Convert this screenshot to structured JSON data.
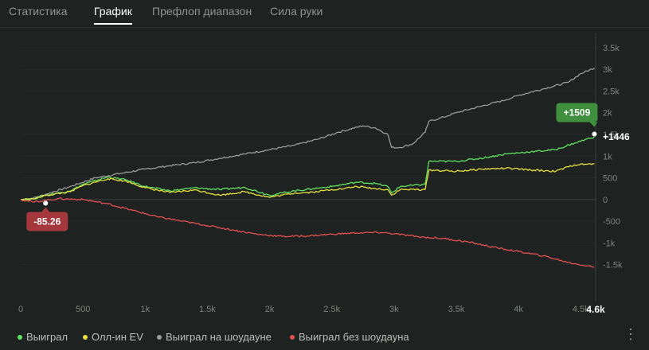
{
  "tabs": [
    {
      "label": "Статистика",
      "active": false
    },
    {
      "label": "График",
      "active": true
    },
    {
      "label": "Префлоп диапазон",
      "active": false
    },
    {
      "label": "Сила руки",
      "active": false
    }
  ],
  "legend": [
    {
      "label": "Выиграл",
      "color": "#5fe35f"
    },
    {
      "label": "Олл-ин EV",
      "color": "#e6e041"
    },
    {
      "label": "Выиграл на шоудауне",
      "color": "#9a9a9a"
    },
    {
      "label": "Выиграл без шоудауна",
      "color": "#e05050"
    }
  ],
  "more_icon": "vertical-ellipsis-icon",
  "chart_data": {
    "type": "line",
    "x_ticks": [
      {
        "v": 0,
        "label": "0"
      },
      {
        "v": 500,
        "label": "500"
      },
      {
        "v": 1000,
        "label": "1k"
      },
      {
        "v": 1500,
        "label": "1.5k"
      },
      {
        "v": 2000,
        "label": "2k"
      },
      {
        "v": 2500,
        "label": "2.5k"
      },
      {
        "v": 3000,
        "label": "3k"
      },
      {
        "v": 3500,
        "label": "3.5k"
      },
      {
        "v": 4000,
        "label": "4k"
      },
      {
        "v": 4500,
        "label": "4.5k"
      }
    ],
    "x_end_label": "4.6k",
    "xlim": [
      0,
      4620
    ],
    "y_ticks": [
      {
        "v": 3500,
        "label": "3.5k"
      },
      {
        "v": 3000,
        "label": "3k"
      },
      {
        "v": 2500,
        "label": "2.5k"
      },
      {
        "v": 2000,
        "label": "2k"
      },
      {
        "v": 1500,
        "label": "1.5k"
      },
      {
        "v": 1000,
        "label": "1k"
      },
      {
        "v": 500,
        "label": "500"
      },
      {
        "v": 0,
        "label": "0"
      },
      {
        "v": -500,
        "label": "-500"
      },
      {
        "v": -1000,
        "label": "-1k"
      },
      {
        "v": -1500,
        "label": "-1.5k"
      }
    ],
    "ylim": [
      -1800,
      3700
    ],
    "series": [
      {
        "name": "Выиграл на шоудауне",
        "color": "#9a9a9a",
        "x": [
          0,
          100,
          200,
          400,
          600,
          800,
          1000,
          1200,
          1400,
          1600,
          1800,
          2000,
          2200,
          2400,
          2550,
          2750,
          2850,
          2950,
          2980,
          3050,
          3150,
          3250,
          3280,
          3400,
          3500,
          3700,
          3900,
          4000,
          4200,
          4400,
          4500,
          4610
        ],
        "y": [
          0,
          30,
          120,
          300,
          500,
          600,
          700,
          780,
          850,
          950,
          1050,
          1150,
          1250,
          1400,
          1550,
          1700,
          1650,
          1500,
          1200,
          1200,
          1280,
          1550,
          1800,
          1900,
          2000,
          2150,
          2300,
          2400,
          2550,
          2700,
          2900,
          3030
        ]
      },
      {
        "name": "Выиграл",
        "color": "#5fe35f",
        "x": [
          0,
          100,
          200,
          400,
          500,
          700,
          850,
          1000,
          1200,
          1400,
          1600,
          1800,
          2000,
          2200,
          2350,
          2500,
          2600,
          2700,
          2850,
          2950,
          2980,
          3050,
          3250,
          3280,
          3500,
          3700,
          3900,
          4100,
          4300,
          4450,
          4610
        ],
        "y": [
          0,
          15,
          100,
          200,
          350,
          520,
          450,
          300,
          200,
          270,
          230,
          280,
          100,
          200,
          250,
          300,
          350,
          400,
          370,
          300,
          150,
          300,
          350,
          880,
          880,
          950,
          1050,
          1100,
          1150,
          1300,
          1446
        ]
      },
      {
        "name": "Олл-ин EV",
        "color": "#e6e041",
        "x": [
          0,
          100,
          200,
          400,
          500,
          700,
          850,
          1000,
          1200,
          1400,
          1600,
          1800,
          2000,
          2200,
          2350,
          2500,
          2600,
          2700,
          2850,
          2950,
          2980,
          3050,
          3250,
          3280,
          3500,
          3700,
          3900,
          4100,
          4300,
          4450,
          4610
        ],
        "y": [
          0,
          15,
          90,
          180,
          320,
          480,
          420,
          270,
          160,
          220,
          100,
          180,
          50,
          150,
          170,
          230,
          250,
          300,
          250,
          230,
          100,
          230,
          230,
          680,
          650,
          700,
          720,
          680,
          650,
          800,
          820
        ]
      },
      {
        "name": "Выиграл без шоудауна",
        "color": "#e05050",
        "x": [
          0,
          100,
          300,
          500,
          700,
          900,
          1100,
          1300,
          1500,
          1700,
          1900,
          2100,
          2300,
          2500,
          2700,
          2900,
          3000,
          3200,
          3400,
          3600,
          3800,
          4000,
          4200,
          4400,
          4610
        ],
        "y": [
          0,
          -60,
          20,
          0,
          -100,
          -250,
          -400,
          -500,
          -600,
          -700,
          -800,
          -850,
          -840,
          -800,
          -770,
          -760,
          -790,
          -860,
          -900,
          -980,
          -1100,
          -1200,
          -1300,
          -1450,
          -1560
        ]
      }
    ],
    "markers": [
      {
        "x": 200,
        "y": -85.26,
        "label": "-85.26",
        "color": "#a5383d",
        "pos": "below"
      },
      {
        "x": 4610,
        "y": 1509,
        "label": "+1509",
        "color": "#3f8f3f",
        "pos": "above"
      }
    ],
    "end_label": {
      "y": 1446,
      "label": "+1446"
    }
  }
}
